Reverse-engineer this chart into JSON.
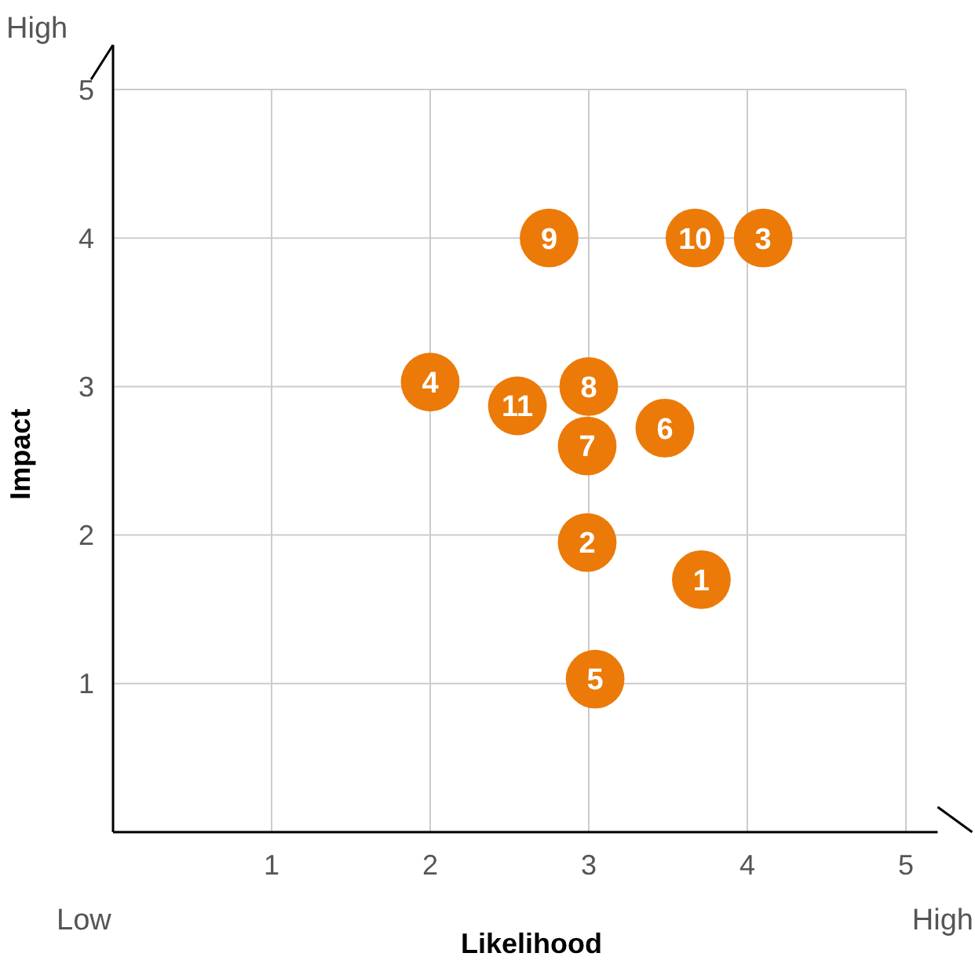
{
  "chart_data": {
    "type": "scatter",
    "xlabel": "Likelihood",
    "ylabel": "Impact",
    "x": [
      3.71,
      2.99,
      4.1,
      2.0,
      3.04,
      3.48,
      2.99,
      3.0,
      2.75,
      3.67,
      2.55
    ],
    "values": [
      1.7,
      1.95,
      4.0,
      3.03,
      1.03,
      2.72,
      2.6,
      3.0,
      4.0,
      4.0,
      2.87
    ],
    "color": "#ec7a08",
    "marker": "circle",
    "grid": true,
    "xlim": [
      0,
      5.2
    ],
    "ylim": [
      0,
      5.3
    ],
    "xticks": [
      1,
      2,
      3,
      4,
      5
    ],
    "yticks": [
      1,
      2,
      3,
      4,
      5
    ],
    "annotations": [
      "High",
      "Low",
      "High",
      {
        "text": "1",
        "x": 3.71,
        "y": 1.7
      },
      {
        "text": "2",
        "x": 2.99,
        "y": 1.95
      },
      {
        "text": "3",
        "x": 4.1,
        "y": 4.0
      },
      {
        "text": "4",
        "x": 2.0,
        "y": 3.03
      },
      {
        "text": "5",
        "x": 3.04,
        "y": 1.03
      },
      {
        "text": "6",
        "x": 3.48,
        "y": 2.72
      },
      {
        "text": "7",
        "x": 2.99,
        "y": 2.6
      },
      {
        "text": "8",
        "x": 3.0,
        "y": 3.0
      },
      {
        "text": "9",
        "x": 2.75,
        "y": 4.0
      },
      {
        "text": "10",
        "x": 3.67,
        "y": 4.0
      },
      {
        "text": "11",
        "x": 2.55,
        "y": 2.87
      }
    ]
  }
}
